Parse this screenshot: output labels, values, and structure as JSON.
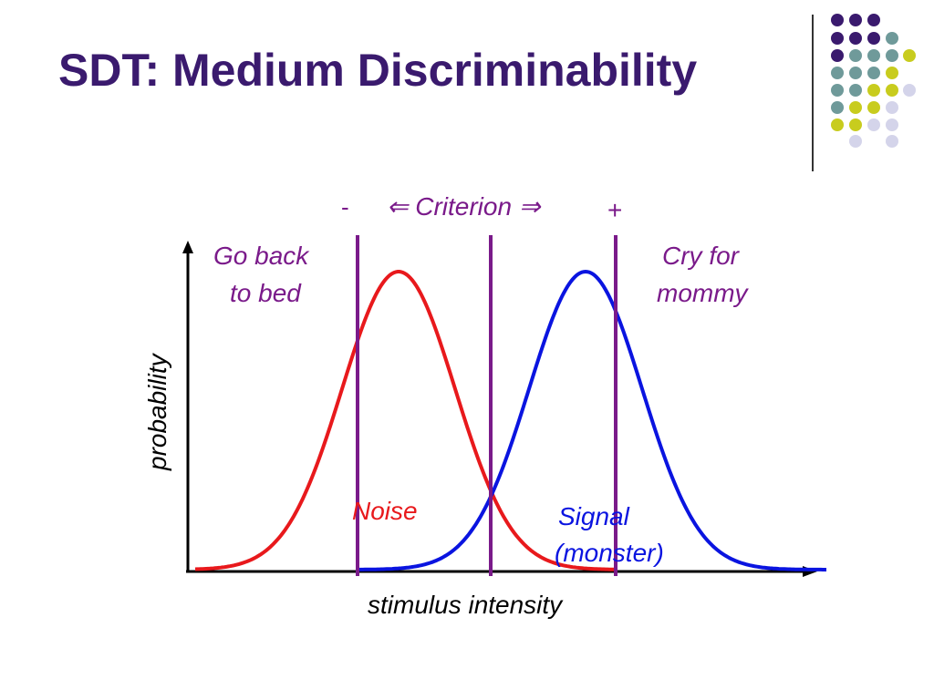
{
  "slide": {
    "title": "SDT: Medium Discriminability"
  },
  "diagram": {
    "criterion_minus": "-",
    "criterion_label": "⇐ Criterion ⇒",
    "criterion_plus": "+",
    "left_response_line1": "Go back",
    "left_response_line2": "to bed",
    "right_response_line1": "Cry for",
    "right_response_line2": "mommy",
    "y_axis_label": "probability",
    "x_axis_label": "stimulus intensity",
    "noise_label": "Noise",
    "signal_label_line1": "Signal",
    "signal_label_line2": "(monster)"
  },
  "colors": {
    "title": "#3a1a6e",
    "noise": "#e8191c",
    "signal": "#0a14e0",
    "criterion": "#7a1a8a",
    "labels_purple": "#7a1a8a",
    "dot_purple": "#3a1a6e",
    "dot_teal": "#6f9a9a",
    "dot_yellow": "#c8cc1e",
    "dot_lavender": "#d4d4ea"
  }
}
